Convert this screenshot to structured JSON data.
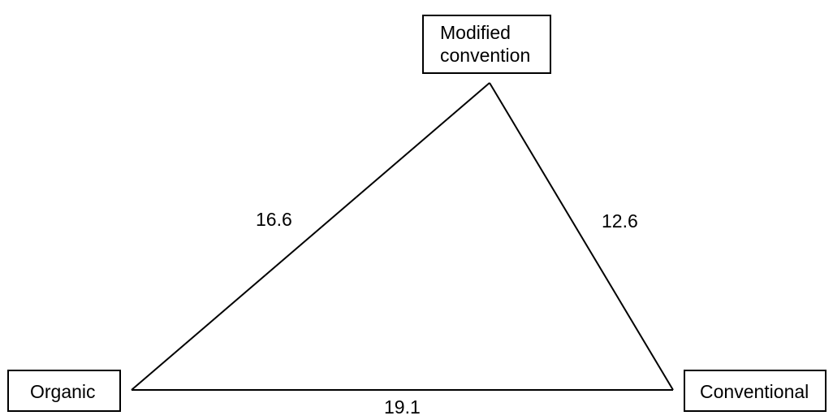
{
  "nodes": {
    "modified": {
      "line1": "Modified",
      "line2": "convention"
    },
    "organic": {
      "label": "Organic"
    },
    "conventional": {
      "label": "Conventional"
    }
  },
  "edges": {
    "organic_modified": "16.6",
    "modified_conventional": "12.6",
    "organic_conventional": "19.1"
  }
}
